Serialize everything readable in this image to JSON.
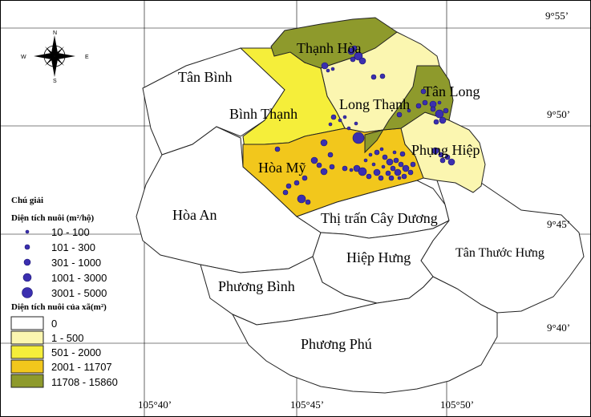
{
  "coordinates": {
    "lat_top": "9°55’",
    "lat_upper": "9°50’",
    "lat_lower": "9°45’",
    "lat_bottom": "9°40’",
    "lon_left": "105°40’",
    "lon_mid": "105°45’",
    "lon_right": "105°50’"
  },
  "compass": {
    "n": "N",
    "s": "S",
    "e": "E",
    "w": "W"
  },
  "communes": {
    "thanh_hoa": {
      "name": "Thạnh Hòa",
      "area_class": "11708 - 15860"
    },
    "tan_binh": {
      "name": "Tân Bình",
      "area_class": "0"
    },
    "binh_thanh": {
      "name": "Bình Thạnh",
      "area_class": "501 - 2000"
    },
    "long_thanh": {
      "name": "Long Thạnh",
      "area_class": "1 - 500"
    },
    "tan_long": {
      "name": "Tân Long",
      "area_class": "11708 - 15860"
    },
    "phung_hiep": {
      "name": "Phụng Hiệp",
      "area_class": "1 - 500"
    },
    "hoa_my": {
      "name": "Hòa Mỹ",
      "area_class": "2001 - 11707"
    },
    "hoa_an": {
      "name": "Hòa An",
      "area_class": "0"
    },
    "thi_tran": {
      "name": "Thị trấn Cây Dương",
      "area_class": "0"
    },
    "hiep_hung": {
      "name": "Hiệp Hưng",
      "area_class": "0"
    },
    "tan_thuoc_hung": {
      "name": "Tân Thước Hưng",
      "area_class": "0"
    },
    "phuong_binh": {
      "name": "Phương Bình",
      "area_class": "0"
    },
    "phuong_phu": {
      "name": "Phương Phú",
      "area_class": "0"
    }
  },
  "legend": {
    "title": "Chú giải",
    "household_heading": "Diện tích nuôi (m²/hộ)",
    "household_classes": [
      {
        "label": "10 - 100"
      },
      {
        "label": "101 - 300"
      },
      {
        "label": "301 - 1000"
      },
      {
        "label": "1001 - 3000"
      },
      {
        "label": "3001 - 5000"
      }
    ],
    "commune_heading": "Diện tích nuôi của xã(m²)",
    "commune_classes": [
      {
        "label": "0",
        "color": "#ffffff"
      },
      {
        "label": "1 - 500",
        "color": "#fbf6b0"
      },
      {
        "label": "501 - 2000",
        "color": "#f5ee3a"
      },
      {
        "label": "2001 - 11707",
        "color": "#f2c71c"
      },
      {
        "label": "11708 - 15860",
        "color": "#8e9a2c"
      }
    ]
  },
  "colors": {
    "dot_fill": "#3b2fb0",
    "border": "#222222"
  }
}
